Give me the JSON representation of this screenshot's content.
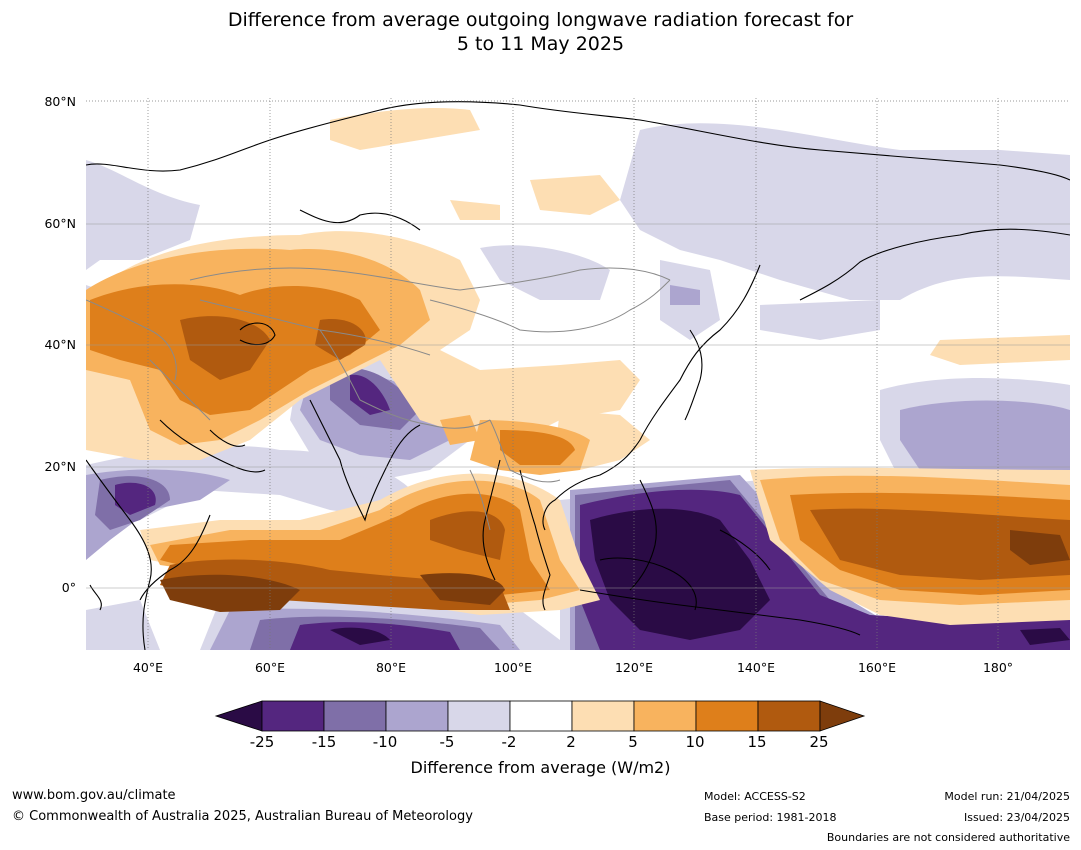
{
  "title": {
    "line1": "Difference from average outgoing longwave radiation forecast for",
    "line2": "5 to 11 May 2025"
  },
  "map": {
    "lat_ticks": [
      "80°N",
      "60°N",
      "40°N",
      "20°N",
      "0°"
    ],
    "lon_ticks": [
      "40°E",
      "60°E",
      "80°E",
      "100°E",
      "120°E",
      "140°E",
      "160°E",
      "180°"
    ]
  },
  "colorbar": {
    "labels": [
      "-25",
      "-15",
      "-10",
      "-5",
      "-2",
      "2",
      "5",
      "10",
      "15",
      "25"
    ],
    "colors": [
      "#2a0b45",
      "#54267f",
      "#7f6fa8",
      "#aca5cf",
      "#d8d7e9",
      "#ffffff",
      "#fddeb3",
      "#f8b35e",
      "#de7f1b",
      "#b05a0f",
      "#7e3d0c"
    ],
    "title": "Difference from average (W/m2)"
  },
  "footer": {
    "website": "www.bom.gov.au/climate",
    "copyright": "© Commonwealth of Australia 2025, Australian Bureau of Meteorology",
    "model": "Model: ACCESS-S2",
    "base_period": "Base period: 1981-2018",
    "model_run": "Model run: 21/04/2025",
    "issued": "Issued: 23/04/2025",
    "disclaimer": "Boundaries are not considered authoritative"
  }
}
